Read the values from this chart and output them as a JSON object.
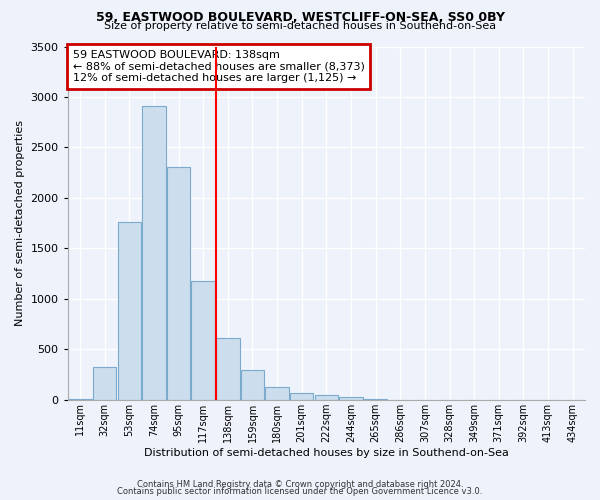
{
  "title1": "59, EASTWOOD BOULEVARD, WESTCLIFF-ON-SEA, SS0 0BY",
  "title2": "Size of property relative to semi-detached houses in Southend-on-Sea",
  "xlabel": "Distribution of semi-detached houses by size in Southend-on-Sea",
  "ylabel": "Number of semi-detached properties",
  "bin_labels": [
    "11sqm",
    "32sqm",
    "53sqm",
    "74sqm",
    "95sqm",
    "117sqm",
    "138sqm",
    "159sqm",
    "180sqm",
    "201sqm",
    "222sqm",
    "244sqm",
    "265sqm",
    "286sqm",
    "307sqm",
    "328sqm",
    "349sqm",
    "371sqm",
    "392sqm",
    "413sqm",
    "434sqm"
  ],
  "bin_values": [
    5,
    320,
    1760,
    2910,
    2310,
    1175,
    615,
    295,
    130,
    65,
    45,
    30,
    5,
    0,
    0,
    0,
    0,
    0,
    0,
    0,
    0
  ],
  "bar_color": "#ccdded",
  "bar_edge_color": "#7aabcc",
  "vline_color": "red",
  "annotation_title": "59 EASTWOOD BOULEVARD: 138sqm",
  "annotation_line1": "← 88% of semi-detached houses are smaller (8,373)",
  "annotation_line2": "12% of semi-detached houses are larger (1,125) →",
  "annotation_box_color": "white",
  "annotation_box_edge_color": "#cc0000",
  "footer1": "Contains HM Land Registry data © Crown copyright and database right 2024.",
  "footer2": "Contains public sector information licensed under the Open Government Licence v3.0.",
  "ylim": [
    0,
    3500
  ],
  "background_color": "#eef2fb"
}
